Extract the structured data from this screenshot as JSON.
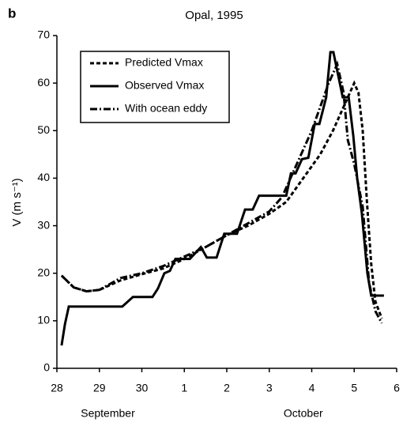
{
  "chart_data": {
    "type": "line",
    "panel_label": "b",
    "title": "Opal, 1995",
    "y_label": "V (m s⁻¹)",
    "annotations": [
      "September",
      "October"
    ],
    "xlim": [
      0,
      8
    ],
    "xticks": [
      {
        "value": 0,
        "label": "28"
      },
      {
        "value": 1,
        "label": "29"
      },
      {
        "value": 2,
        "label": "30"
      },
      {
        "value": 3,
        "label": "1"
      },
      {
        "value": 4,
        "label": "2"
      },
      {
        "value": 5,
        "label": "3"
      },
      {
        "value": 6,
        "label": "4"
      },
      {
        "value": 7,
        "label": "5"
      },
      {
        "value": 8,
        "label": "6"
      }
    ],
    "ylim": [
      0,
      70
    ],
    "yticks": [
      0,
      10,
      20,
      30,
      40,
      50,
      60,
      70
    ],
    "grid": false,
    "legend": "upper left",
    "series": [
      {
        "name": "Predicted Vmax",
        "color": "#000000",
        "dash": "5,3",
        "x": [
          0.11,
          0.4,
          0.7,
          1.0,
          1.5,
          2.0,
          2.5,
          3.0,
          3.5,
          4.0,
          4.5,
          5.0,
          5.4,
          5.8,
          6.2,
          6.5,
          6.8,
          7.0,
          7.1,
          7.2,
          7.3,
          7.4,
          7.5,
          7.65
        ],
        "values": [
          19.5,
          17,
          16.2,
          16.5,
          18.5,
          19.8,
          21,
          23,
          25.5,
          28,
          30,
          32.5,
          35,
          40,
          45,
          50,
          56,
          60,
          58,
          50,
          35,
          22,
          14,
          10.5
        ]
      },
      {
        "name": "Observed Vmax",
        "color": "#000000",
        "dash": "none",
        "x": [
          0.11,
          0.19,
          0.28,
          1.54,
          1.79,
          2.25,
          2.38,
          2.53,
          2.66,
          2.79,
          3.13,
          3.39,
          3.53,
          3.76,
          3.94,
          4.24,
          4.43,
          4.61,
          4.76,
          5.4,
          5.51,
          5.62,
          5.77,
          5.92,
          6.07,
          6.18,
          6.34,
          6.44,
          6.51,
          6.73,
          6.87,
          6.98,
          7.07,
          7.18,
          7.31,
          7.4,
          7.7
        ],
        "values": [
          4.8,
          9.3,
          13,
          13,
          15,
          15,
          16.8,
          20,
          20.5,
          23,
          23,
          25.5,
          23.3,
          23.3,
          28.3,
          28.3,
          33.4,
          33.4,
          36.3,
          36.3,
          41,
          41,
          44,
          44.3,
          51.4,
          51.4,
          57,
          66.5,
          66.5,
          57,
          57,
          48.8,
          40,
          32.6,
          20,
          15.3,
          15.3
        ]
      },
      {
        "name": "With ocean eddy",
        "color": "#000000",
        "dash": "9,3,2,3",
        "x": [
          0.11,
          0.4,
          0.7,
          1.0,
          1.5,
          2.0,
          2.5,
          3.0,
          3.5,
          4.0,
          4.5,
          5.0,
          5.3,
          5.6,
          6.0,
          6.4,
          6.6,
          6.75,
          6.85,
          7.0,
          7.2,
          7.35,
          7.5,
          7.65
        ],
        "values": [
          19.5,
          17,
          16.2,
          16.5,
          19,
          20,
          21.5,
          23.5,
          25.5,
          28,
          30.5,
          33,
          36,
          42,
          50,
          60,
          64,
          58,
          48,
          43,
          34,
          18,
          12,
          9.5
        ]
      }
    ]
  }
}
